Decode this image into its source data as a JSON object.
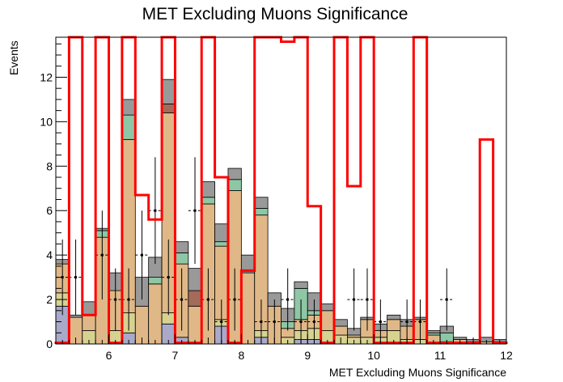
{
  "chart_data": {
    "type": "bar",
    "title": "MET Excluding Muons Significance",
    "xlabel": "MET Excluding Muons Significance",
    "ylabel": "Events",
    "xlim": [
      5.2,
      12.0
    ],
    "ylim": [
      0,
      13.8
    ],
    "x_ticks": [
      6,
      7,
      8,
      9,
      10,
      11,
      12
    ],
    "y_ticks": [
      0,
      2,
      4,
      6,
      8,
      10,
      12
    ],
    "bin_width": 0.2,
    "bin_edges_start": 5.2,
    "stack": [
      {
        "color": "#a9a9c9",
        "values": [
          1.7,
          0,
          0,
          0,
          0,
          0.5,
          0,
          0,
          0.9,
          0.3,
          0,
          0,
          0.8,
          0,
          0,
          0.3,
          0,
          0,
          0.2,
          0.2,
          0,
          0,
          0,
          0,
          0,
          0,
          0,
          0,
          0,
          0,
          0,
          0,
          0,
          0
        ]
      },
      {
        "color": "#d6d290",
        "values": [
          0.6,
          0,
          0.6,
          0,
          0.6,
          0.9,
          0,
          0,
          0.5,
          0,
          0,
          0,
          0.3,
          0,
          0,
          0.3,
          0,
          0.3,
          0.4,
          0.5,
          0.6,
          0.4,
          0.3,
          0.3,
          0.3,
          0.6,
          0.2,
          0.2,
          0,
          0,
          0,
          0,
          0,
          0
        ]
      },
      {
        "color": "#e0b887",
        "values": [
          1.3,
          1.2,
          0.7,
          4.8,
          1.8,
          7.8,
          1.7,
          2.7,
          9.0,
          3.3,
          1.7,
          6.3,
          3.3,
          6.9,
          3.2,
          5.2,
          1.7,
          0.4,
          0.5,
          0.6,
          0.9,
          0.4,
          0.1,
          0.8,
          0.3,
          0.5,
          0.6,
          0.9,
          0.4,
          0.1,
          0.2,
          0.1,
          0.1,
          0.1
        ]
      },
      {
        "color": "#8ec7a5",
        "values": [
          0,
          0,
          0,
          0.3,
          0,
          1.1,
          0,
          0.3,
          0,
          0.5,
          0,
          0.3,
          0.2,
          0.5,
          0,
          0.3,
          0,
          0.3,
          1.4,
          0.2,
          0,
          0,
          0,
          0,
          0,
          0,
          0,
          0,
          0.1,
          0.4,
          0,
          0,
          0,
          0
        ]
      },
      {
        "color": "#a46a5a",
        "values": [
          0,
          0,
          0,
          0,
          0,
          0,
          0,
          0,
          0.4,
          0,
          0.7,
          0,
          0,
          0,
          0,
          0,
          0,
          0,
          0,
          0,
          0,
          0,
          0,
          0,
          0,
          0,
          0,
          0,
          0,
          0,
          0,
          0,
          0,
          0
        ]
      },
      {
        "color": "#999999",
        "values": [
          0.2,
          0.1,
          0.6,
          0.1,
          0.8,
          0.7,
          1.3,
          0.9,
          1.1,
          0.5,
          1.0,
          0.7,
          0.8,
          0.5,
          0.8,
          0.5,
          0.6,
          0.6,
          0.3,
          0.8,
          0.3,
          0.3,
          0.3,
          0.1,
          0.3,
          0.2,
          0.3,
          0.1,
          0.1,
          0.3,
          0.1,
          0.1,
          0.2,
          0.1
        ]
      }
    ],
    "data_points": [
      {
        "x": 5.3,
        "y": 3.0,
        "err": 1.7
      },
      {
        "x": 5.5,
        "y": 3.0,
        "err": 1.7
      },
      {
        "x": 5.9,
        "y": 4.0,
        "err": 2.0
      },
      {
        "x": 6.1,
        "y": 2.0,
        "err": 1.4
      },
      {
        "x": 6.3,
        "y": 2.0,
        "err": 1.4
      },
      {
        "x": 6.5,
        "y": 4.0,
        "err": 2.0
      },
      {
        "x": 6.7,
        "y": 6.0,
        "err": 2.4
      },
      {
        "x": 6.9,
        "y": 3.0,
        "err": 1.7
      },
      {
        "x": 7.1,
        "y": 2.0,
        "err": 1.4
      },
      {
        "x": 7.3,
        "y": 6.0,
        "err": 2.4
      },
      {
        "x": 7.5,
        "y": 2.0,
        "err": 1.4
      },
      {
        "x": 7.7,
        "y": 1.0,
        "err": 1.0
      },
      {
        "x": 7.9,
        "y": 2.0,
        "err": 1.4
      },
      {
        "x": 8.3,
        "y": 1.0,
        "err": 1.0
      },
      {
        "x": 8.5,
        "y": 1.0,
        "err": 1.0
      },
      {
        "x": 8.7,
        "y": 2.0,
        "err": 1.4
      },
      {
        "x": 8.9,
        "y": 1.0,
        "err": 1.0
      },
      {
        "x": 9.1,
        "y": 1.0,
        "err": 1.0
      },
      {
        "x": 9.7,
        "y": 2.0,
        "err": 1.4
      },
      {
        "x": 9.9,
        "y": 2.0,
        "err": 1.4
      },
      {
        "x": 10.1,
        "y": 1.0,
        "err": 1.0
      },
      {
        "x": 10.5,
        "y": 1.0,
        "err": 1.0
      },
      {
        "x": 10.7,
        "y": 1.0,
        "err": 1.0
      },
      {
        "x": 11.1,
        "y": 2.0,
        "err": 1.4
      }
    ],
    "signal": {
      "color": "#ff0000",
      "bins": [
        {
          "x0": 5.2,
          "x1": 5.4,
          "y": 0.05
        },
        {
          "x0": 5.4,
          "x1": 5.6,
          "y": 15
        },
        {
          "x0": 5.6,
          "x1": 5.8,
          "y": 1.3
        },
        {
          "x0": 5.8,
          "x1": 6.0,
          "y": 15
        },
        {
          "x0": 6.0,
          "x1": 6.2,
          "y": 0.05
        },
        {
          "x0": 6.2,
          "x1": 6.4,
          "y": 15
        },
        {
          "x0": 6.4,
          "x1": 6.6,
          "y": 6.7
        },
        {
          "x0": 6.6,
          "x1": 6.8,
          "y": 5.6
        },
        {
          "x0": 6.8,
          "x1": 7.0,
          "y": 15
        },
        {
          "x0": 7.0,
          "x1": 7.2,
          "y": 0.05
        },
        {
          "x0": 7.2,
          "x1": 7.4,
          "y": 0.05
        },
        {
          "x0": 7.4,
          "x1": 7.6,
          "y": 15
        },
        {
          "x0": 7.6,
          "x1": 7.8,
          "y": 7.5
        },
        {
          "x0": 7.8,
          "x1": 8.0,
          "y": 0.05
        },
        {
          "x0": 8.0,
          "x1": 8.2,
          "y": 3.3
        },
        {
          "x0": 8.2,
          "x1": 8.4,
          "y": 15
        },
        {
          "x0": 8.4,
          "x1": 8.6,
          "y": 15
        },
        {
          "x0": 8.6,
          "x1": 8.8,
          "y": 13.6
        },
        {
          "x0": 8.8,
          "x1": 9.0,
          "y": 15
        },
        {
          "x0": 9.0,
          "x1": 9.2,
          "y": 6.2
        },
        {
          "x0": 9.2,
          "x1": 9.4,
          "y": 0.05
        },
        {
          "x0": 9.4,
          "x1": 9.6,
          "y": 15
        },
        {
          "x0": 9.6,
          "x1": 9.8,
          "y": 7.1
        },
        {
          "x0": 9.8,
          "x1": 10.0,
          "y": 15
        },
        {
          "x0": 10.0,
          "x1": 10.6,
          "y": 0.05
        },
        {
          "x0": 10.6,
          "x1": 10.8,
          "y": 15
        },
        {
          "x0": 10.8,
          "x1": 11.6,
          "y": 0.05
        },
        {
          "x0": 11.6,
          "x1": 11.8,
          "y": 9.2
        },
        {
          "x0": 11.8,
          "x1": 12.0,
          "y": 0.05
        }
      ]
    },
    "grid": false,
    "legend": "none"
  }
}
